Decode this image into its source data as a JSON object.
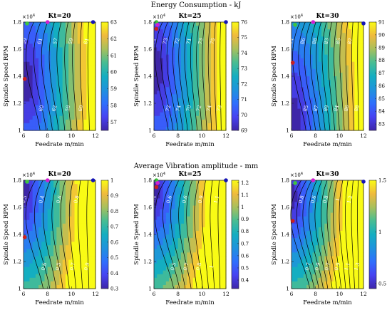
{
  "figure": {
    "row_titles": [
      "Energy Consumption - kJ",
      "Average Vibration amplitude - mm"
    ],
    "xlabel": "Feedrate m/min",
    "ylabel": "Spindle Speed RPM",
    "y_multiplier": "×10",
    "y_multiplier_exp": "4",
    "xticks": [
      "6",
      "8",
      "10",
      "12"
    ],
    "yticks": [
      "1",
      "1.2",
      "1.4",
      "1.6",
      "1.8"
    ]
  },
  "chart_data": [
    {
      "type": "heatmap",
      "title": "Kt=20",
      "row": 0,
      "col": 0,
      "xlim": [
        6,
        12
      ],
      "ylim": [
        10000,
        18000
      ],
      "clim": [
        56.5,
        63
      ],
      "colorbar_ticks": [
        57,
        58,
        59,
        60,
        61,
        62,
        63
      ],
      "contour_labels": [
        "59",
        "60",
        "61",
        "62",
        "57",
        "58",
        "59",
        "60",
        "61"
      ],
      "markers": [
        {
          "x": 6.3,
          "y": 17900,
          "color": "#3ec33e"
        },
        {
          "x": 8,
          "y": 18000,
          "color": "#d21fd2"
        },
        {
          "x": 11.8,
          "y": 18000,
          "color": "#1515b4"
        },
        {
          "x": 6.1,
          "y": 13800,
          "color": "#c82020"
        }
      ]
    },
    {
      "type": "heatmap",
      "title": "Kt=25",
      "row": 0,
      "col": 1,
      "xlim": [
        6,
        12
      ],
      "ylim": [
        10000,
        18000
      ],
      "clim": [
        69,
        76
      ],
      "colorbar_ticks": [
        69,
        70,
        71,
        72,
        73,
        74,
        75,
        76
      ],
      "contour_labels": [
        "71",
        "72",
        "73",
        "74",
        "72",
        "70",
        "71",
        "72",
        "73",
        "74",
        "75",
        "73"
      ],
      "markers": [
        {
          "x": 6.2,
          "y": 18000,
          "color": "#3ec33e"
        },
        {
          "x": 6.3,
          "y": 17800,
          "color": "#d21fd2"
        },
        {
          "x": 12,
          "y": 18000,
          "color": "#1515b4"
        },
        {
          "x": 6.2,
          "y": 17500,
          "color": "#c82020"
        }
      ]
    },
    {
      "type": "heatmap",
      "title": "Kt=30",
      "row": 0,
      "col": 2,
      "xlim": [
        6,
        12
      ],
      "ylim": [
        10000,
        18000
      ],
      "clim": [
        82.5,
        91
      ],
      "colorbar_ticks": [
        83,
        84,
        85,
        86,
        87,
        88,
        89,
        90,
        91
      ],
      "contour_labels": [
        "84",
        "85",
        "86",
        "87",
        "88",
        "89",
        "83",
        "84",
        "85",
        "86",
        "87",
        "88"
      ],
      "markers": [
        {
          "x": 6.3,
          "y": 17800,
          "color": "#3ec33e"
        },
        {
          "x": 7.8,
          "y": 18000,
          "color": "#d21fd2"
        },
        {
          "x": 12,
          "y": 17900,
          "color": "#1515b4"
        },
        {
          "x": 6.1,
          "y": 15000,
          "color": "#c82020"
        }
      ]
    },
    {
      "type": "heatmap",
      "title": "Kt=20",
      "row": 1,
      "col": 0,
      "xlim": [
        6,
        12
      ],
      "ylim": [
        10000,
        18000
      ],
      "clim": [
        0.3,
        1.0
      ],
      "colorbar_ticks": [
        0.3,
        0.4,
        0.5,
        0.6,
        0.7,
        0.8,
        0.9,
        1
      ],
      "contour_labels": [
        "0.5",
        "0.6",
        "0.4",
        "0.5",
        "0.6",
        "0.7",
        "0.8",
        "0.9"
      ],
      "markers": [
        {
          "x": 6.3,
          "y": 17900,
          "color": "#3ec33e"
        },
        {
          "x": 8,
          "y": 18000,
          "color": "#d21fd2"
        },
        {
          "x": 11.8,
          "y": 18000,
          "color": "#1515b4"
        },
        {
          "x": 6.1,
          "y": 13800,
          "color": "#c82020"
        }
      ]
    },
    {
      "type": "heatmap",
      "title": "Kt=25",
      "row": 1,
      "col": 1,
      "xlim": [
        6,
        12
      ],
      "ylim": [
        10000,
        18000
      ],
      "clim": [
        0.33,
        1.22
      ],
      "colorbar_ticks": [
        0.4,
        0.5,
        0.6,
        0.7,
        0.8,
        0.9,
        1,
        1.1,
        1.2
      ],
      "contour_labels": [
        "0.4",
        "0.5",
        "0.6",
        "0.7",
        "0.6",
        "0.8",
        "0.9",
        "1",
        "1.1"
      ],
      "markers": [
        {
          "x": 6.2,
          "y": 18000,
          "color": "#3ec33e"
        },
        {
          "x": 6.3,
          "y": 17800,
          "color": "#d21fd2"
        },
        {
          "x": 12,
          "y": 18000,
          "color": "#1515b4"
        },
        {
          "x": 6.2,
          "y": 17500,
          "color": "#c82020"
        }
      ]
    },
    {
      "type": "heatmap",
      "title": "Kt=30",
      "row": 1,
      "col": 2,
      "xlim": [
        6,
        12
      ],
      "ylim": [
        10000,
        18000
      ],
      "clim": [
        0.45,
        1.5
      ],
      "colorbar_ticks": [
        0.5,
        1,
        1.5
      ],
      "contour_labels": [
        "0.6",
        "0.7",
        "0.8",
        "0.9",
        "0.6",
        "0.7",
        "0.8",
        "0.9",
        "1",
        "1.1",
        "1.2",
        "1.3"
      ],
      "markers": [
        {
          "x": 6.3,
          "y": 17800,
          "color": "#3ec33e"
        },
        {
          "x": 7.8,
          "y": 18000,
          "color": "#d21fd2"
        },
        {
          "x": 12,
          "y": 17900,
          "color": "#1515b4"
        },
        {
          "x": 6.1,
          "y": 15000,
          "color": "#c82020"
        }
      ]
    }
  ],
  "colormap": [
    "#3e26a8",
    "#4743f2",
    "#2f6ffd",
    "#1f93dd",
    "#14aec1",
    "#48bd93",
    "#a7c05d",
    "#f0ba3d",
    "#f9fb15"
  ]
}
